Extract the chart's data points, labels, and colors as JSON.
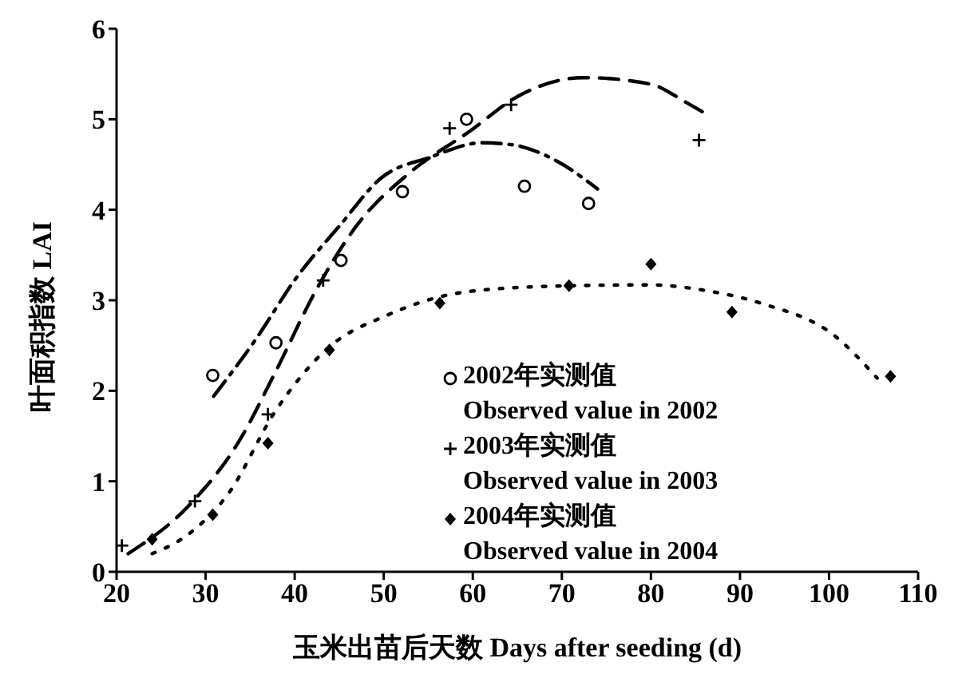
{
  "chart_data": {
    "type": "scatter",
    "xlabel": "玉米出苗后天数 Days after seeding (d)",
    "ylabel": "叶面积指数 LAI",
    "xlim": [
      20,
      110
    ],
    "xticks": [
      20,
      30,
      40,
      50,
      60,
      70,
      80,
      90,
      100,
      110
    ],
    "ylim": [
      0,
      6
    ],
    "yticks": [
      0,
      1,
      2,
      3,
      4,
      5,
      6
    ],
    "grid": false,
    "legend": "bottom right",
    "series": [
      {
        "name": "2002年实测值\nObserved value in 2002",
        "marker": "circle",
        "color": "#000000",
        "x": [
          30.8,
          37.9,
          45.2,
          52.1,
          59.3,
          65.8,
          73.0
        ],
        "values": [
          2.17,
          2.53,
          3.44,
          4.2,
          5.0,
          4.26,
          4.07
        ]
      },
      {
        "name": "2003年实测值\nObserved value in 2003",
        "marker": "cross",
        "color": "#000000",
        "x": [
          20.6,
          28.8,
          37.0,
          43.2,
          57.4,
          64.3,
          85.4
        ],
        "values": [
          0.29,
          0.78,
          1.74,
          3.22,
          4.9,
          5.16,
          4.77
        ]
      },
      {
        "name": "2004年实测值\nObserved value in 2004",
        "marker": "diamond",
        "color": "#000000",
        "x": [
          24.0,
          30.8,
          37.0,
          43.9,
          56.3,
          70.8,
          80.0,
          89.1,
          106.9
        ],
        "values": [
          0.36,
          0.63,
          1.42,
          2.45,
          2.97,
          3.16,
          3.4,
          2.87,
          2.16
        ]
      },
      {
        "type": "line",
        "line_style": "dashdot",
        "marker": "none",
        "color": "#000000",
        "x": [
          30.9,
          35.5,
          40.2,
          45.1,
          49.7,
          55.2,
          61.0,
          64.3,
          69.4,
          74.0
        ],
        "values": [
          1.94,
          2.55,
          3.25,
          3.83,
          4.35,
          4.58,
          4.74,
          4.72,
          4.54,
          4.23
        ]
      },
      {
        "type": "line",
        "line_style": "dashed",
        "marker": "none",
        "color": "#000000",
        "x": [
          21.3,
          28.0,
          33.8,
          37.8,
          42.5,
          47.0,
          52.8,
          59.7,
          65.0,
          72.4,
          79.9,
          83.9,
          86.0
        ],
        "values": [
          0.2,
          0.72,
          1.45,
          2.2,
          3.13,
          3.83,
          4.4,
          4.87,
          5.25,
          5.46,
          5.39,
          5.19,
          5.07
        ]
      },
      {
        "type": "line",
        "line_style": "dotted",
        "marker": "none",
        "color": "#000000",
        "x": [
          24.0,
          28.0,
          32.6,
          37.8,
          43.6,
          50.5,
          59.8,
          70.7,
          79.8,
          86.6,
          92.6,
          100.6,
          105.4
        ],
        "values": [
          0.2,
          0.41,
          0.87,
          1.77,
          2.46,
          2.84,
          3.1,
          3.16,
          3.17,
          3.1,
          2.96,
          2.61,
          2.14
        ]
      }
    ]
  }
}
